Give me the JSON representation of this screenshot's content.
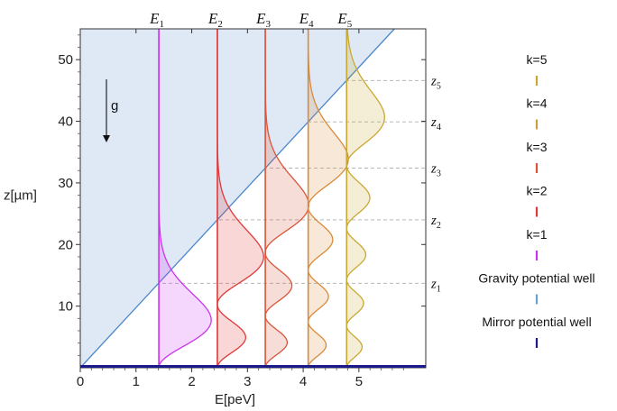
{
  "chart_data": {
    "type": "line",
    "xlabel": "E[peV]",
    "ylabel": "z[µm]",
    "xlim": [
      0,
      6.2
    ],
    "ylim": [
      0,
      55
    ],
    "xticks": [
      "0",
      "1",
      "2",
      "3",
      "4",
      "5"
    ],
    "yticks": [
      "10",
      "20",
      "30",
      "40",
      "50"
    ],
    "gravity_label": "g",
    "energy_levels": [
      {
        "label": "E",
        "sub": "1",
        "E": 1.41,
        "color": "#cc33ee"
      },
      {
        "label": "E",
        "sub": "2",
        "E": 2.46,
        "color": "#e03838"
      },
      {
        "label": "E",
        "sub": "3",
        "E": 3.32,
        "color": "#d9553a"
      },
      {
        "label": "E",
        "sub": "4",
        "E": 4.09,
        "color": "#d98a3a"
      },
      {
        "label": "E",
        "sub": "5",
        "E": 4.78,
        "color": "#c9a830"
      }
    ],
    "turning_points": [
      {
        "label": "z",
        "sub": "1",
        "z": 13.7
      },
      {
        "label": "z",
        "sub": "2",
        "z": 24.0
      },
      {
        "label": "z",
        "sub": "3",
        "z": 32.4
      },
      {
        "label": "z",
        "sub": "4",
        "z": 39.9
      },
      {
        "label": "z",
        "sub": "5",
        "z": 46.6
      }
    ],
    "gravity_potential": {
      "slope_peV_per_um": 0.1025,
      "color": "#4a86cc"
    },
    "mirror_potential": {
      "z": 0,
      "color": "#1a1a8c"
    },
    "legend": [
      {
        "label": "k=5",
        "color": "#c9a830"
      },
      {
        "label": "k=4",
        "color": "#c9a040"
      },
      {
        "label": "k=3",
        "color": "#d9553a"
      },
      {
        "label": "k=2",
        "color": "#e03838"
      },
      {
        "label": "k=1",
        "color": "#cc33ee"
      },
      {
        "label": "Gravity potential well",
        "color": "#6a9fd0"
      },
      {
        "label": "Mirror potential well",
        "color": "#1a1a8c"
      }
    ]
  }
}
